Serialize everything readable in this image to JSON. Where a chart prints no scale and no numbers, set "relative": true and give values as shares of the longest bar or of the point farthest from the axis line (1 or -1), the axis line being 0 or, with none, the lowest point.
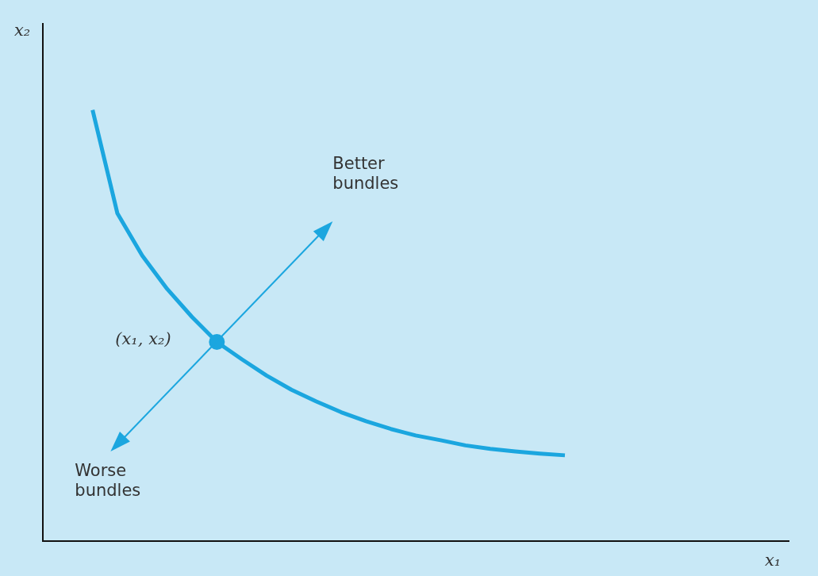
{
  "chart_data": {
    "type": "line",
    "relative": true,
    "xlabel": "x₁",
    "ylabel": "x₂",
    "categories": [
      null,
      null,
      null,
      null,
      null,
      null,
      null,
      null,
      null,
      null,
      null,
      null,
      null,
      null,
      null,
      null,
      null,
      null,
      null,
      null,
      null,
      null,
      null,
      null,
      null,
      null,
      null,
      null,
      null,
      null,
      null
    ],
    "series": [
      {
        "color": "#1ba6df",
        "values": [
          null,
          null,
          1,
          0.76,
          0.662,
          0.585,
          0.52,
          0.462,
          0.422,
          0.384,
          0.351,
          0.324,
          0.299,
          0.278,
          0.26,
          0.245,
          0.234,
          0.222,
          0.214,
          0.208,
          0.203,
          0.199,
          null,
          null,
          null,
          null,
          null,
          null,
          null,
          null,
          null
        ]
      }
    ],
    "annotations": [
      "Better bundles",
      "Worse bundles",
      "(x₁, x₂)"
    ],
    "grid": false,
    "legend": false,
    "line_style": "solid"
  }
}
